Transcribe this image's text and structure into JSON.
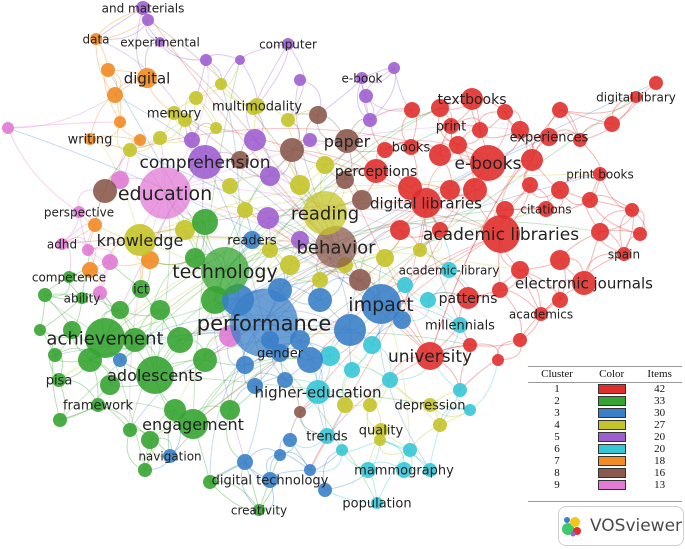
{
  "clusters": [
    {
      "id": "1",
      "color": "#e0302e",
      "items": "42"
    },
    {
      "id": "2",
      "color": "#36a432",
      "items": "33"
    },
    {
      "id": "3",
      "color": "#3a7fc8",
      "items": "30"
    },
    {
      "id": "4",
      "color": "#c4c42a",
      "items": "27"
    },
    {
      "id": "5",
      "color": "#9e5fcf",
      "items": "20"
    },
    {
      "id": "6",
      "color": "#36c7d6",
      "items": "20"
    },
    {
      "id": "7",
      "color": "#f18b25",
      "items": "18"
    },
    {
      "id": "8",
      "color": "#8b5a4e",
      "items": "16"
    },
    {
      "id": "9",
      "color": "#e07ad4",
      "items": "13"
    }
  ],
  "legend": {
    "col_cluster": "Cluster",
    "col_color": "Color",
    "col_items": "Items"
  },
  "brand": {
    "name": "VOSviewer"
  },
  "terms": [
    {
      "label": "and materials",
      "cluster": "5"
    },
    {
      "label": "data",
      "cluster": "7"
    },
    {
      "label": "experimental",
      "cluster": "5"
    },
    {
      "label": "computer",
      "cluster": "5"
    },
    {
      "label": "digital",
      "cluster": "7"
    },
    {
      "label": "e-book",
      "cluster": "5"
    },
    {
      "label": "memory",
      "cluster": "4"
    },
    {
      "label": "multimodality",
      "cluster": "4"
    },
    {
      "label": "textbooks",
      "cluster": "1"
    },
    {
      "label": "digital library",
      "cluster": "1"
    },
    {
      "label": "writing",
      "cluster": "7"
    },
    {
      "label": "print",
      "cluster": "1"
    },
    {
      "label": "paper",
      "cluster": "8"
    },
    {
      "label": "experiences",
      "cluster": "1"
    },
    {
      "label": "books",
      "cluster": "1"
    },
    {
      "label": "comprehension",
      "cluster": "5"
    },
    {
      "label": "perceptions",
      "cluster": "1"
    },
    {
      "label": "e-books",
      "cluster": "1"
    },
    {
      "label": "print books",
      "cluster": "1"
    },
    {
      "label": "education",
      "cluster": "9"
    },
    {
      "label": "perspective",
      "cluster": "9"
    },
    {
      "label": "reading",
      "cluster": "4"
    },
    {
      "label": "digital libraries",
      "cluster": "1"
    },
    {
      "label": "citations",
      "cluster": "1"
    },
    {
      "label": "knowledge",
      "cluster": "4"
    },
    {
      "label": "readers",
      "cluster": "3"
    },
    {
      "label": "behavior",
      "cluster": "8"
    },
    {
      "label": "academic libraries",
      "cluster": "1"
    },
    {
      "label": "adhd",
      "cluster": "9"
    },
    {
      "label": "spain",
      "cluster": "1"
    },
    {
      "label": "technology",
      "cluster": "2"
    },
    {
      "label": "academic-library",
      "cluster": "6"
    },
    {
      "label": "competence",
      "cluster": "2"
    },
    {
      "label": "electronic journals",
      "cluster": "1"
    },
    {
      "label": "ability",
      "cluster": "2"
    },
    {
      "label": "ict",
      "cluster": "2"
    },
    {
      "label": "patterns",
      "cluster": "1"
    },
    {
      "label": "impact",
      "cluster": "3"
    },
    {
      "label": "academics",
      "cluster": "1"
    },
    {
      "label": "performance",
      "cluster": "3"
    },
    {
      "label": "millennials",
      "cluster": "6"
    },
    {
      "label": "achievement",
      "cluster": "2"
    },
    {
      "label": "gender",
      "cluster": "3"
    },
    {
      "label": "university",
      "cluster": "1"
    },
    {
      "label": "adolescents",
      "cluster": "2"
    },
    {
      "label": "pisa",
      "cluster": "2"
    },
    {
      "label": "higher-education",
      "cluster": "6"
    },
    {
      "label": "framework",
      "cluster": "2"
    },
    {
      "label": "depression",
      "cluster": "4"
    },
    {
      "label": "engagement",
      "cluster": "2"
    },
    {
      "label": "quality",
      "cluster": "4"
    },
    {
      "label": "trends",
      "cluster": "6"
    },
    {
      "label": "navigation",
      "cluster": "3"
    },
    {
      "label": "mammography",
      "cluster": "6"
    },
    {
      "label": "digital technology",
      "cluster": "3"
    },
    {
      "label": "population",
      "cluster": "6"
    },
    {
      "label": "creativity",
      "cluster": "2"
    }
  ]
}
